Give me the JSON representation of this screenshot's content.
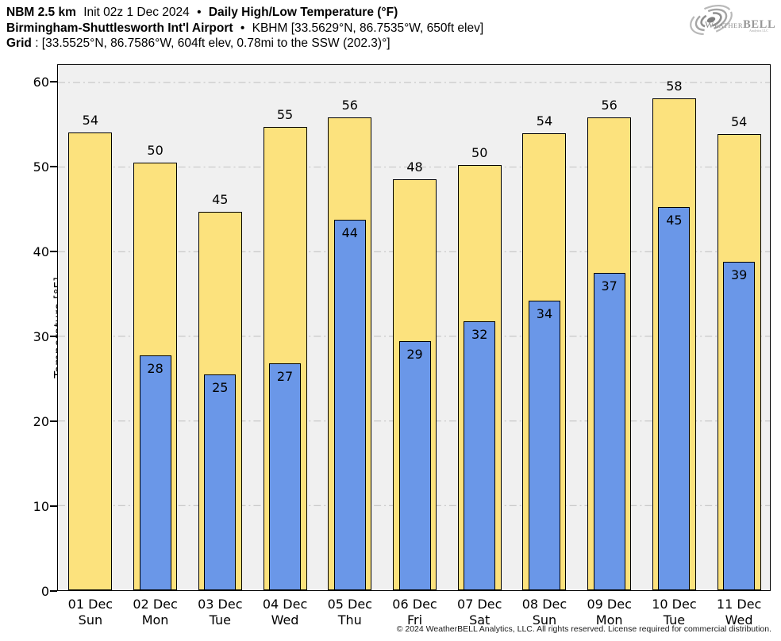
{
  "header": {
    "model": "NBM 2.5 km",
    "init": "Init 02z 1 Dec 2024",
    "bullet": "•",
    "title": "Daily High/Low Temperature (°F)",
    "station_name": "Birmingham-Shuttlesworth Int'l Airport",
    "station_info": "KBHM [33.5629°N, 86.7535°W, 650ft elev]",
    "grid_label": "Grid",
    "grid_info": ": [33.5525°N, 86.7586°W, 604ft elev, 0.78mi to the SSW (202.3)°]"
  },
  "logo": {
    "brand_w": "W",
    "brand_eather": "EATHER",
    "brand_bell": "BELL",
    "subtitle": "Analytics LLC"
  },
  "footer": "© 2024 WeatherBELL Analytics, LLC. All rights reserved. License required for commercial distribution.",
  "chart_data": {
    "type": "bar",
    "title": "NBM 2.5 km Daily High/Low Temperature (°F) — KBHM",
    "ylabel": "Temperature [°F]",
    "xlabel": "",
    "ylim": [
      0,
      62
    ],
    "yticks": [
      0,
      10,
      20,
      30,
      40,
      50,
      60
    ],
    "grid": true,
    "legend_position": "none",
    "colors": {
      "high_bar": "#fce27d",
      "low_bar": "#6a97e8",
      "bar_border": "#000000",
      "plot_bg": "#f0f0f0",
      "gridline": "#c3c3c3"
    },
    "categories": [
      "01 Dec",
      "02 Dec",
      "03 Dec",
      "04 Dec",
      "05 Dec",
      "06 Dec",
      "07 Dec",
      "08 Dec",
      "09 Dec",
      "10 Dec",
      "11 Dec"
    ],
    "weekdays": [
      "Sun",
      "Mon",
      "Tue",
      "Wed",
      "Thu",
      "Fri",
      "Sat",
      "Sun",
      "Mon",
      "Tue",
      "Wed"
    ],
    "series": [
      {
        "name": "High",
        "values": [
          54,
          50,
          45,
          55,
          56,
          48,
          50,
          54,
          56,
          58,
          54
        ],
        "bar_values_exact": [
          53.9,
          50.4,
          44.6,
          54.6,
          55.7,
          48.4,
          50.1,
          53.8,
          55.7,
          57.9,
          53.7
        ]
      },
      {
        "name": "Low",
        "values": [
          null,
          28,
          25,
          27,
          44,
          29,
          32,
          34,
          37,
          45,
          39
        ],
        "bar_values_exact": [
          null,
          27.7,
          25.4,
          26.7,
          43.6,
          29.3,
          31.7,
          34.1,
          37.4,
          45.1,
          38.7
        ]
      }
    ]
  }
}
